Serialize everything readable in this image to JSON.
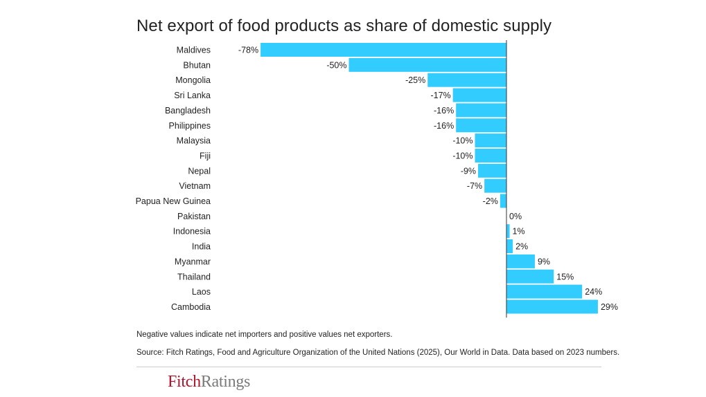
{
  "chart_data": {
    "type": "bar",
    "orientation": "horizontal",
    "title": "Net export of food products as share of domestic supply",
    "categories": [
      "Maldives",
      "Bhutan",
      "Mongolia",
      "Sri Lanka",
      "Bangladesh",
      "Philippines",
      "Malaysia",
      "Fiji",
      "Nepal",
      "Vietnam",
      "Papua New Guinea",
      "Pakistan",
      "Indonesia",
      "India",
      "Myanmar",
      "Thailand",
      "Laos",
      "Cambodia"
    ],
    "values": [
      -78,
      -50,
      -25,
      -17,
      -16,
      -16,
      -10,
      -10,
      -9,
      -7,
      -2,
      0,
      1,
      2,
      9,
      15,
      24,
      29
    ],
    "data_labels": [
      "-78%",
      "-50%",
      "-25%",
      "-17%",
      "-16%",
      "-16%",
      "-10%",
      "-10%",
      "-9%",
      "-7%",
      "-2%",
      "0%",
      "1%",
      "2%",
      "9%",
      "15%",
      "24%",
      "29%"
    ],
    "unit": "%",
    "xlabel": "",
    "ylabel": "",
    "grid": false,
    "legend": "none",
    "bar_color": "#33ccff"
  },
  "footnote": "Negative values indicate net importers and positive values net exporters.",
  "source": "Source: Fitch Ratings, Food and Agriculture Organization of the United Nations (2025), Our World in Data. Data based on 2023 numbers.",
  "logo": {
    "part1": "Fitch",
    "part2": "Ratings"
  }
}
